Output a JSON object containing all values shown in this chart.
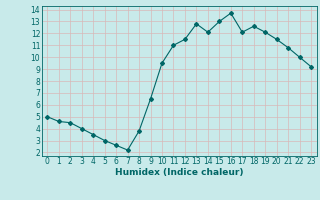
{
  "x": [
    0,
    1,
    2,
    3,
    4,
    5,
    6,
    7,
    8,
    9,
    10,
    11,
    12,
    13,
    14,
    15,
    16,
    17,
    18,
    19,
    20,
    21,
    22,
    23
  ],
  "y": [
    5.0,
    4.6,
    4.5,
    4.0,
    3.5,
    3.0,
    2.6,
    2.2,
    3.8,
    6.5,
    9.5,
    11.0,
    11.5,
    12.8,
    12.1,
    13.0,
    13.7,
    12.1,
    12.6,
    12.1,
    11.5,
    10.8,
    10.0,
    9.2
  ],
  "line_color": "#006666",
  "bg_color": "#c8eaea",
  "grid_color": "#b0d8d8",
  "xlabel": "Humidex (Indice chaleur)",
  "ylim": [
    2,
    14
  ],
  "xlim": [
    -0.5,
    23.5
  ],
  "yticks": [
    2,
    3,
    4,
    5,
    6,
    7,
    8,
    9,
    10,
    11,
    12,
    13,
    14
  ],
  "xticks": [
    0,
    1,
    2,
    3,
    4,
    5,
    6,
    7,
    8,
    9,
    10,
    11,
    12,
    13,
    14,
    15,
    16,
    17,
    18,
    19,
    20,
    21,
    22,
    23
  ],
  "tick_fontsize": 5.5,
  "xlabel_fontsize": 6.5,
  "marker": "D",
  "markersize": 2.0,
  "linewidth": 0.8
}
